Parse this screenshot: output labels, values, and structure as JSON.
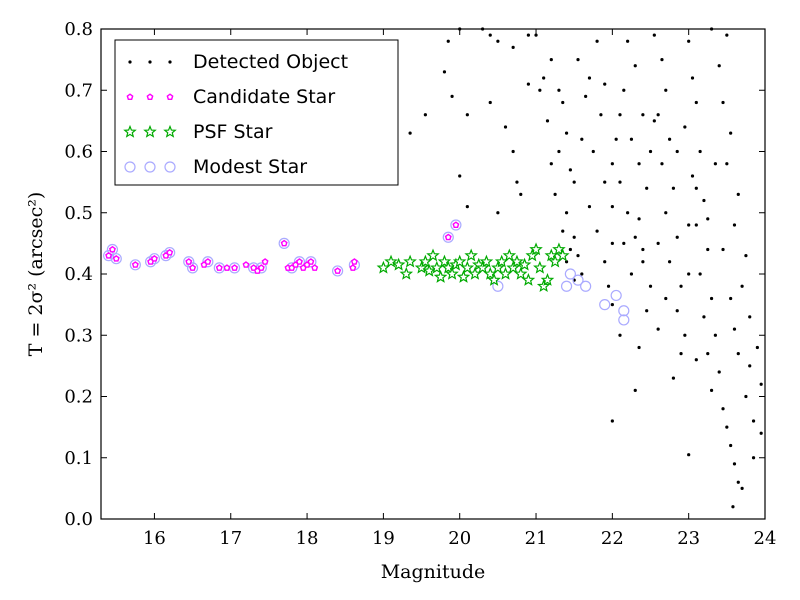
{
  "chart_data": {
    "type": "scatter",
    "title": "",
    "xlabel": "Magnitude",
    "ylabel": "T = 2σ² (arcsec²)",
    "xlim": [
      15.3,
      24
    ],
    "ylim": [
      0.0,
      0.8
    ],
    "xticks": [
      "16",
      "17",
      "18",
      "19",
      "20",
      "21",
      "22",
      "23",
      "24"
    ],
    "yticks": [
      "0.0",
      "0.1",
      "0.2",
      "0.3",
      "0.4",
      "0.5",
      "0.6",
      "0.7",
      "0.8"
    ],
    "grid": false,
    "legend": "top-left",
    "series": [
      {
        "name": "Detected Object",
        "marker": "dot",
        "color": "#000000",
        "points": [
          [
            19.85,
            0.78
          ],
          [
            20.0,
            0.8
          ],
          [
            20.4,
            0.79
          ],
          [
            20.5,
            0.78
          ],
          [
            20.9,
            0.79
          ],
          [
            21.0,
            0.79
          ],
          [
            21.1,
            0.72
          ],
          [
            21.05,
            0.7
          ],
          [
            20.9,
            0.71
          ],
          [
            20.4,
            0.68
          ],
          [
            19.8,
            0.73
          ],
          [
            19.9,
            0.69
          ],
          [
            20.1,
            0.66
          ],
          [
            20.6,
            0.64
          ],
          [
            20.7,
            0.6
          ],
          [
            20.75,
            0.55
          ],
          [
            20.8,
            0.53
          ],
          [
            21.2,
            0.75
          ],
          [
            21.3,
            0.7
          ],
          [
            21.35,
            0.68
          ],
          [
            21.4,
            0.63
          ],
          [
            21.3,
            0.6
          ],
          [
            21.45,
            0.57
          ],
          [
            21.5,
            0.55
          ],
          [
            21.25,
            0.53
          ],
          [
            21.4,
            0.5
          ],
          [
            21.35,
            0.47
          ],
          [
            21.5,
            0.46
          ],
          [
            21.3,
            0.44
          ],
          [
            21.4,
            0.42
          ],
          [
            21.45,
            0.44
          ],
          [
            21.55,
            0.43
          ],
          [
            21.6,
            0.4
          ],
          [
            21.5,
            0.39
          ],
          [
            19.35,
            0.63
          ],
          [
            19.55,
            0.66
          ],
          [
            20.0,
            0.56
          ],
          [
            20.1,
            0.51
          ],
          [
            20.5,
            0.5
          ],
          [
            21.8,
            0.78
          ],
          [
            21.7,
            0.72
          ],
          [
            21.85,
            0.66
          ],
          [
            21.75,
            0.6
          ],
          [
            21.9,
            0.55
          ],
          [
            21.7,
            0.51
          ],
          [
            21.8,
            0.47
          ],
          [
            21.9,
            0.42
          ],
          [
            21.95,
            0.38
          ],
          [
            22.0,
            0.35
          ],
          [
            22.1,
            0.3
          ],
          [
            22.2,
            0.78
          ],
          [
            22.3,
            0.74
          ],
          [
            22.15,
            0.7
          ],
          [
            22.4,
            0.66
          ],
          [
            22.25,
            0.62
          ],
          [
            22.35,
            0.58
          ],
          [
            22.45,
            0.54
          ],
          [
            22.2,
            0.5
          ],
          [
            22.3,
            0.46
          ],
          [
            22.4,
            0.42
          ],
          [
            22.5,
            0.38
          ],
          [
            22.45,
            0.34
          ],
          [
            22.6,
            0.31
          ],
          [
            22.55,
            0.79
          ],
          [
            22.65,
            0.75
          ],
          [
            22.7,
            0.7
          ],
          [
            22.6,
            0.66
          ],
          [
            22.75,
            0.62
          ],
          [
            22.65,
            0.58
          ],
          [
            22.8,
            0.54
          ],
          [
            22.7,
            0.5
          ],
          [
            22.85,
            0.46
          ],
          [
            22.75,
            0.42
          ],
          [
            22.9,
            0.38
          ],
          [
            22.85,
            0.34
          ],
          [
            22.95,
            0.3
          ],
          [
            22.9,
            0.27
          ],
          [
            23.0,
            0.78
          ],
          [
            23.05,
            0.72
          ],
          [
            23.1,
            0.68
          ],
          [
            22.95,
            0.64
          ],
          [
            23.15,
            0.6
          ],
          [
            23.05,
            0.56
          ],
          [
            23.2,
            0.52
          ],
          [
            23.1,
            0.48
          ],
          [
            23.25,
            0.44
          ],
          [
            23.15,
            0.4
          ],
          [
            23.3,
            0.36
          ],
          [
            23.2,
            0.33
          ],
          [
            23.35,
            0.3
          ],
          [
            23.25,
            0.27
          ],
          [
            23.4,
            0.24
          ],
          [
            23.3,
            0.21
          ],
          [
            23.45,
            0.18
          ],
          [
            23.5,
            0.15
          ],
          [
            23.55,
            0.12
          ],
          [
            23.6,
            0.09
          ],
          [
            23.65,
            0.06
          ],
          [
            23.7,
            0.05
          ],
          [
            23.58,
            0.02
          ],
          [
            23.85,
            0.16
          ],
          [
            23.95,
            0.22
          ],
          [
            23.9,
            0.28
          ],
          [
            23.8,
            0.33
          ],
          [
            23.7,
            0.38
          ],
          [
            23.75,
            0.43
          ],
          [
            23.6,
            0.48
          ],
          [
            23.65,
            0.53
          ],
          [
            23.5,
            0.58
          ],
          [
            23.55,
            0.63
          ],
          [
            23.45,
            0.68
          ],
          [
            23.4,
            0.74
          ],
          [
            23.5,
            0.79
          ],
          [
            23.3,
            0.8
          ],
          [
            22.0,
            0.16
          ],
          [
            22.35,
            0.28
          ],
          [
            22.8,
            0.23
          ],
          [
            23.0,
            0.105
          ],
          [
            23.1,
            0.26
          ],
          [
            22.3,
            0.21
          ],
          [
            21.6,
            0.62
          ],
          [
            21.65,
            0.69
          ],
          [
            21.55,
            0.75
          ],
          [
            22.0,
            0.58
          ],
          [
            22.05,
            0.62
          ],
          [
            22.1,
            0.66
          ],
          [
            22.5,
            0.6
          ],
          [
            22.55,
            0.65
          ],
          [
            22.35,
            0.49
          ],
          [
            22.85,
            0.6
          ],
          [
            22.4,
            0.44
          ],
          [
            23.0,
            0.4
          ],
          [
            23.25,
            0.49
          ],
          [
            23.35,
            0.58
          ],
          [
            23.45,
            0.44
          ],
          [
            23.55,
            0.36
          ],
          [
            23.65,
            0.27
          ],
          [
            23.75,
            0.2
          ],
          [
            23.85,
            0.1
          ],
          [
            23.95,
            0.14
          ],
          [
            23.8,
            0.25
          ],
          [
            23.6,
            0.31
          ],
          [
            21.9,
            0.71
          ],
          [
            22.0,
            0.51
          ],
          [
            22.15,
            0.45
          ],
          [
            22.25,
            0.4
          ],
          [
            22.0,
            0.45
          ],
          [
            22.1,
            0.55
          ],
          [
            22.6,
            0.45
          ],
          [
            22.7,
            0.36
          ],
          [
            23.0,
            0.48
          ],
          [
            23.1,
            0.54
          ],
          [
            21.2,
            0.58
          ],
          [
            21.15,
            0.65
          ],
          [
            20.7,
            0.77
          ],
          [
            20.3,
            0.8
          ]
        ]
      },
      {
        "name": "Candidate Star",
        "marker": "pentagon",
        "color": "#ff00ff",
        "points": [
          [
            15.4,
            0.43
          ],
          [
            15.45,
            0.44
          ],
          [
            15.5,
            0.425
          ],
          [
            15.75,
            0.415
          ],
          [
            15.95,
            0.42
          ],
          [
            16.0,
            0.425
          ],
          [
            16.15,
            0.43
          ],
          [
            16.2,
            0.435
          ],
          [
            16.45,
            0.42
          ],
          [
            16.5,
            0.41
          ],
          [
            16.65,
            0.415
          ],
          [
            16.7,
            0.42
          ],
          [
            16.85,
            0.41
          ],
          [
            16.95,
            0.41
          ],
          [
            17.05,
            0.41
          ],
          [
            17.2,
            0.415
          ],
          [
            17.3,
            0.41
          ],
          [
            17.35,
            0.405
          ],
          [
            17.4,
            0.41
          ],
          [
            17.45,
            0.42
          ],
          [
            17.7,
            0.45
          ],
          [
            17.75,
            0.41
          ],
          [
            17.8,
            0.41
          ],
          [
            17.85,
            0.415
          ],
          [
            17.9,
            0.42
          ],
          [
            17.95,
            0.41
          ],
          [
            18.0,
            0.415
          ],
          [
            18.05,
            0.42
          ],
          [
            18.1,
            0.41
          ],
          [
            18.4,
            0.405
          ],
          [
            18.6,
            0.41
          ],
          [
            18.62,
            0.42
          ],
          [
            19.85,
            0.46
          ],
          [
            19.95,
            0.48
          ]
        ]
      },
      {
        "name": "PSF Star",
        "marker": "star",
        "color": "#00aa00",
        "points": [
          [
            19.0,
            0.41
          ],
          [
            19.1,
            0.42
          ],
          [
            19.2,
            0.415
          ],
          [
            19.3,
            0.4
          ],
          [
            19.35,
            0.42
          ],
          [
            19.5,
            0.41
          ],
          [
            19.55,
            0.42
          ],
          [
            19.6,
            0.405
          ],
          [
            19.65,
            0.43
          ],
          [
            19.7,
            0.41
          ],
          [
            19.75,
            0.395
          ],
          [
            19.8,
            0.42
          ],
          [
            19.85,
            0.41
          ],
          [
            19.9,
            0.4
          ],
          [
            19.95,
            0.415
          ],
          [
            20.0,
            0.42
          ],
          [
            20.05,
            0.395
          ],
          [
            20.1,
            0.41
          ],
          [
            20.15,
            0.43
          ],
          [
            20.2,
            0.4
          ],
          [
            20.25,
            0.415
          ],
          [
            20.3,
            0.41
          ],
          [
            20.35,
            0.42
          ],
          [
            20.4,
            0.4
          ],
          [
            20.45,
            0.39
          ],
          [
            20.5,
            0.41
          ],
          [
            20.55,
            0.42
          ],
          [
            20.6,
            0.4
          ],
          [
            20.65,
            0.43
          ],
          [
            20.7,
            0.41
          ],
          [
            20.75,
            0.42
          ],
          [
            20.8,
            0.4
          ],
          [
            20.85,
            0.415
          ],
          [
            20.9,
            0.39
          ],
          [
            20.95,
            0.43
          ],
          [
            21.0,
            0.44
          ],
          [
            21.05,
            0.41
          ],
          [
            21.1,
            0.38
          ],
          [
            21.15,
            0.39
          ],
          [
            21.2,
            0.43
          ],
          [
            21.25,
            0.42
          ],
          [
            21.3,
            0.44
          ],
          [
            21.35,
            0.43
          ]
        ]
      },
      {
        "name": "Modest Star",
        "marker": "circle",
        "color": "#aaaaff",
        "points": [
          [
            15.4,
            0.43
          ],
          [
            15.45,
            0.44
          ],
          [
            15.5,
            0.425
          ],
          [
            15.75,
            0.415
          ],
          [
            15.95,
            0.42
          ],
          [
            16.0,
            0.425
          ],
          [
            16.15,
            0.43
          ],
          [
            16.2,
            0.435
          ],
          [
            16.45,
            0.42
          ],
          [
            16.5,
            0.41
          ],
          [
            16.7,
            0.42
          ],
          [
            16.85,
            0.41
          ],
          [
            17.05,
            0.41
          ],
          [
            17.3,
            0.41
          ],
          [
            17.4,
            0.41
          ],
          [
            17.7,
            0.45
          ],
          [
            17.8,
            0.41
          ],
          [
            17.9,
            0.42
          ],
          [
            18.05,
            0.42
          ],
          [
            18.4,
            0.405
          ],
          [
            18.62,
            0.415
          ],
          [
            19.85,
            0.46
          ],
          [
            19.95,
            0.48
          ],
          [
            20.5,
            0.38
          ],
          [
            21.4,
            0.38
          ],
          [
            21.55,
            0.39
          ],
          [
            21.65,
            0.38
          ],
          [
            21.9,
            0.35
          ],
          [
            22.05,
            0.365
          ],
          [
            22.15,
            0.34
          ],
          [
            22.15,
            0.325
          ],
          [
            21.45,
            0.4
          ]
        ]
      }
    ]
  }
}
